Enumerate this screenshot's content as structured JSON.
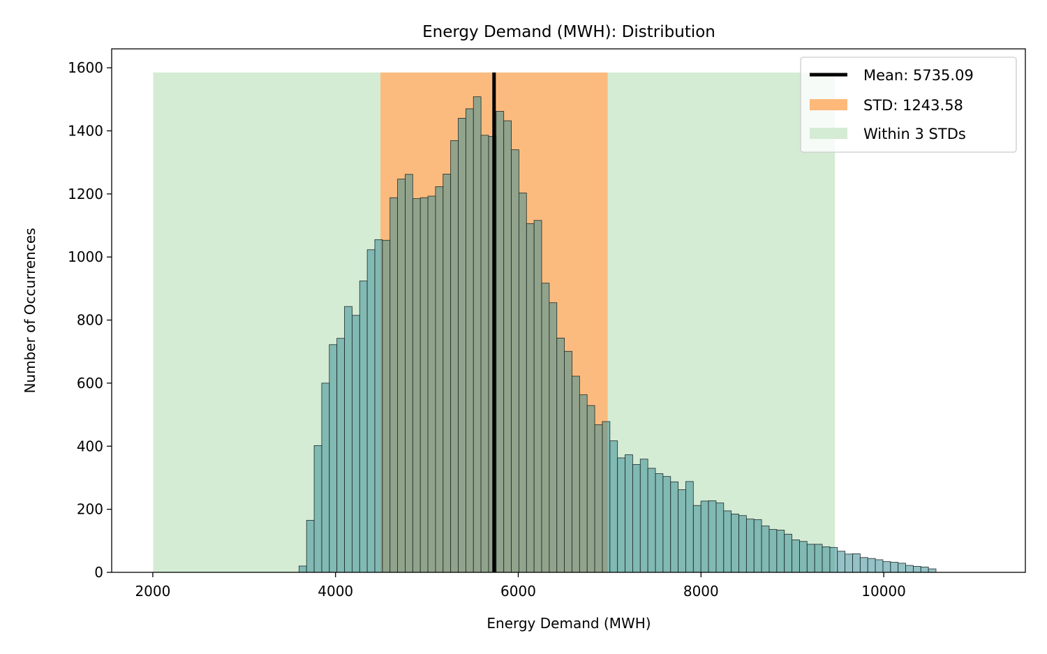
{
  "chart_data": {
    "type": "bar",
    "title": "Energy Demand (MWH): Distribution",
    "xlabel": "Energy Demand (MWH)",
    "ylabel": "Number of Occurrences",
    "xlim": [
      1550,
      11550
    ],
    "ylim": [
      0,
      1660
    ],
    "xticks": [
      2000,
      4000,
      6000,
      8000,
      10000
    ],
    "yticks": [
      0,
      200,
      400,
      600,
      800,
      1000,
      1200,
      1400,
      1600
    ],
    "grid": false,
    "legend_position": "top-right",
    "histogram": {
      "bin_start": 3600,
      "bin_width": 83,
      "counts": [
        20,
        165,
        402,
        600,
        722,
        742,
        843,
        815,
        924,
        1023,
        1055,
        1053,
        1188,
        1247,
        1262,
        1185,
        1188,
        1193,
        1223,
        1263,
        1369,
        1440,
        1470,
        1508,
        1386,
        1382,
        1462,
        1432,
        1340,
        1203,
        1106,
        1116,
        917,
        855,
        743,
        701,
        622,
        563,
        529,
        468,
        478,
        417,
        363,
        373,
        342,
        359,
        330,
        313,
        304,
        287,
        262,
        288,
        212,
        226,
        227,
        220,
        195,
        185,
        180,
        169,
        167,
        147,
        136,
        134,
        121,
        103,
        98,
        89,
        89,
        81,
        79,
        67,
        58,
        59,
        47,
        44,
        40,
        34,
        32,
        29,
        22,
        19,
        17,
        11
      ],
      "color": "#3d8f98"
    },
    "series": [
      {
        "name": "Mean: 5735.09",
        "kind": "vline",
        "x": 5735.09,
        "color": "#000000"
      },
      {
        "name": "STD: 1243.58",
        "kind": "span",
        "x_range": [
          4491.51,
          6978.67
        ],
        "color": "#fdb87a"
      },
      {
        "name": "Within 3 STDs",
        "kind": "span",
        "x_range": [
          2004.35,
          9465.83
        ],
        "color": "#d4ebd4"
      }
    ],
    "span_top": 1585
  }
}
